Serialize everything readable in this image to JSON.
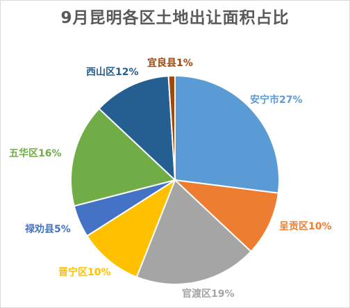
{
  "chart_data": {
    "type": "pie",
    "title": "9月昆明各区土地出让面积占比",
    "start_angle_deg": 0,
    "direction": "clockwise",
    "slices": [
      {
        "name": "安宁市",
        "value": 27,
        "label": "安宁市27%",
        "color": "#5B9BD5"
      },
      {
        "name": "呈贡区",
        "value": 10,
        "label": "呈贡区10%",
        "color": "#ED7D31"
      },
      {
        "name": "官渡区",
        "value": 19,
        "label": "官渡区19%",
        "color": "#A5A5A5"
      },
      {
        "name": "晋宁区",
        "value": 10,
        "label": "晋宁区10%",
        "color": "#FFC000"
      },
      {
        "name": "禄劝县",
        "value": 5,
        "label": "禄劝县5%",
        "color": "#4472C4"
      },
      {
        "name": "五华区",
        "value": 16,
        "label": "五华区16%",
        "color": "#70AD47"
      },
      {
        "name": "西山区",
        "value": 12,
        "label": "西山区12%",
        "color": "#255E91"
      },
      {
        "name": "宜良县",
        "value": 1,
        "label": "宜良县1%",
        "color": "#9E480E"
      }
    ]
  }
}
